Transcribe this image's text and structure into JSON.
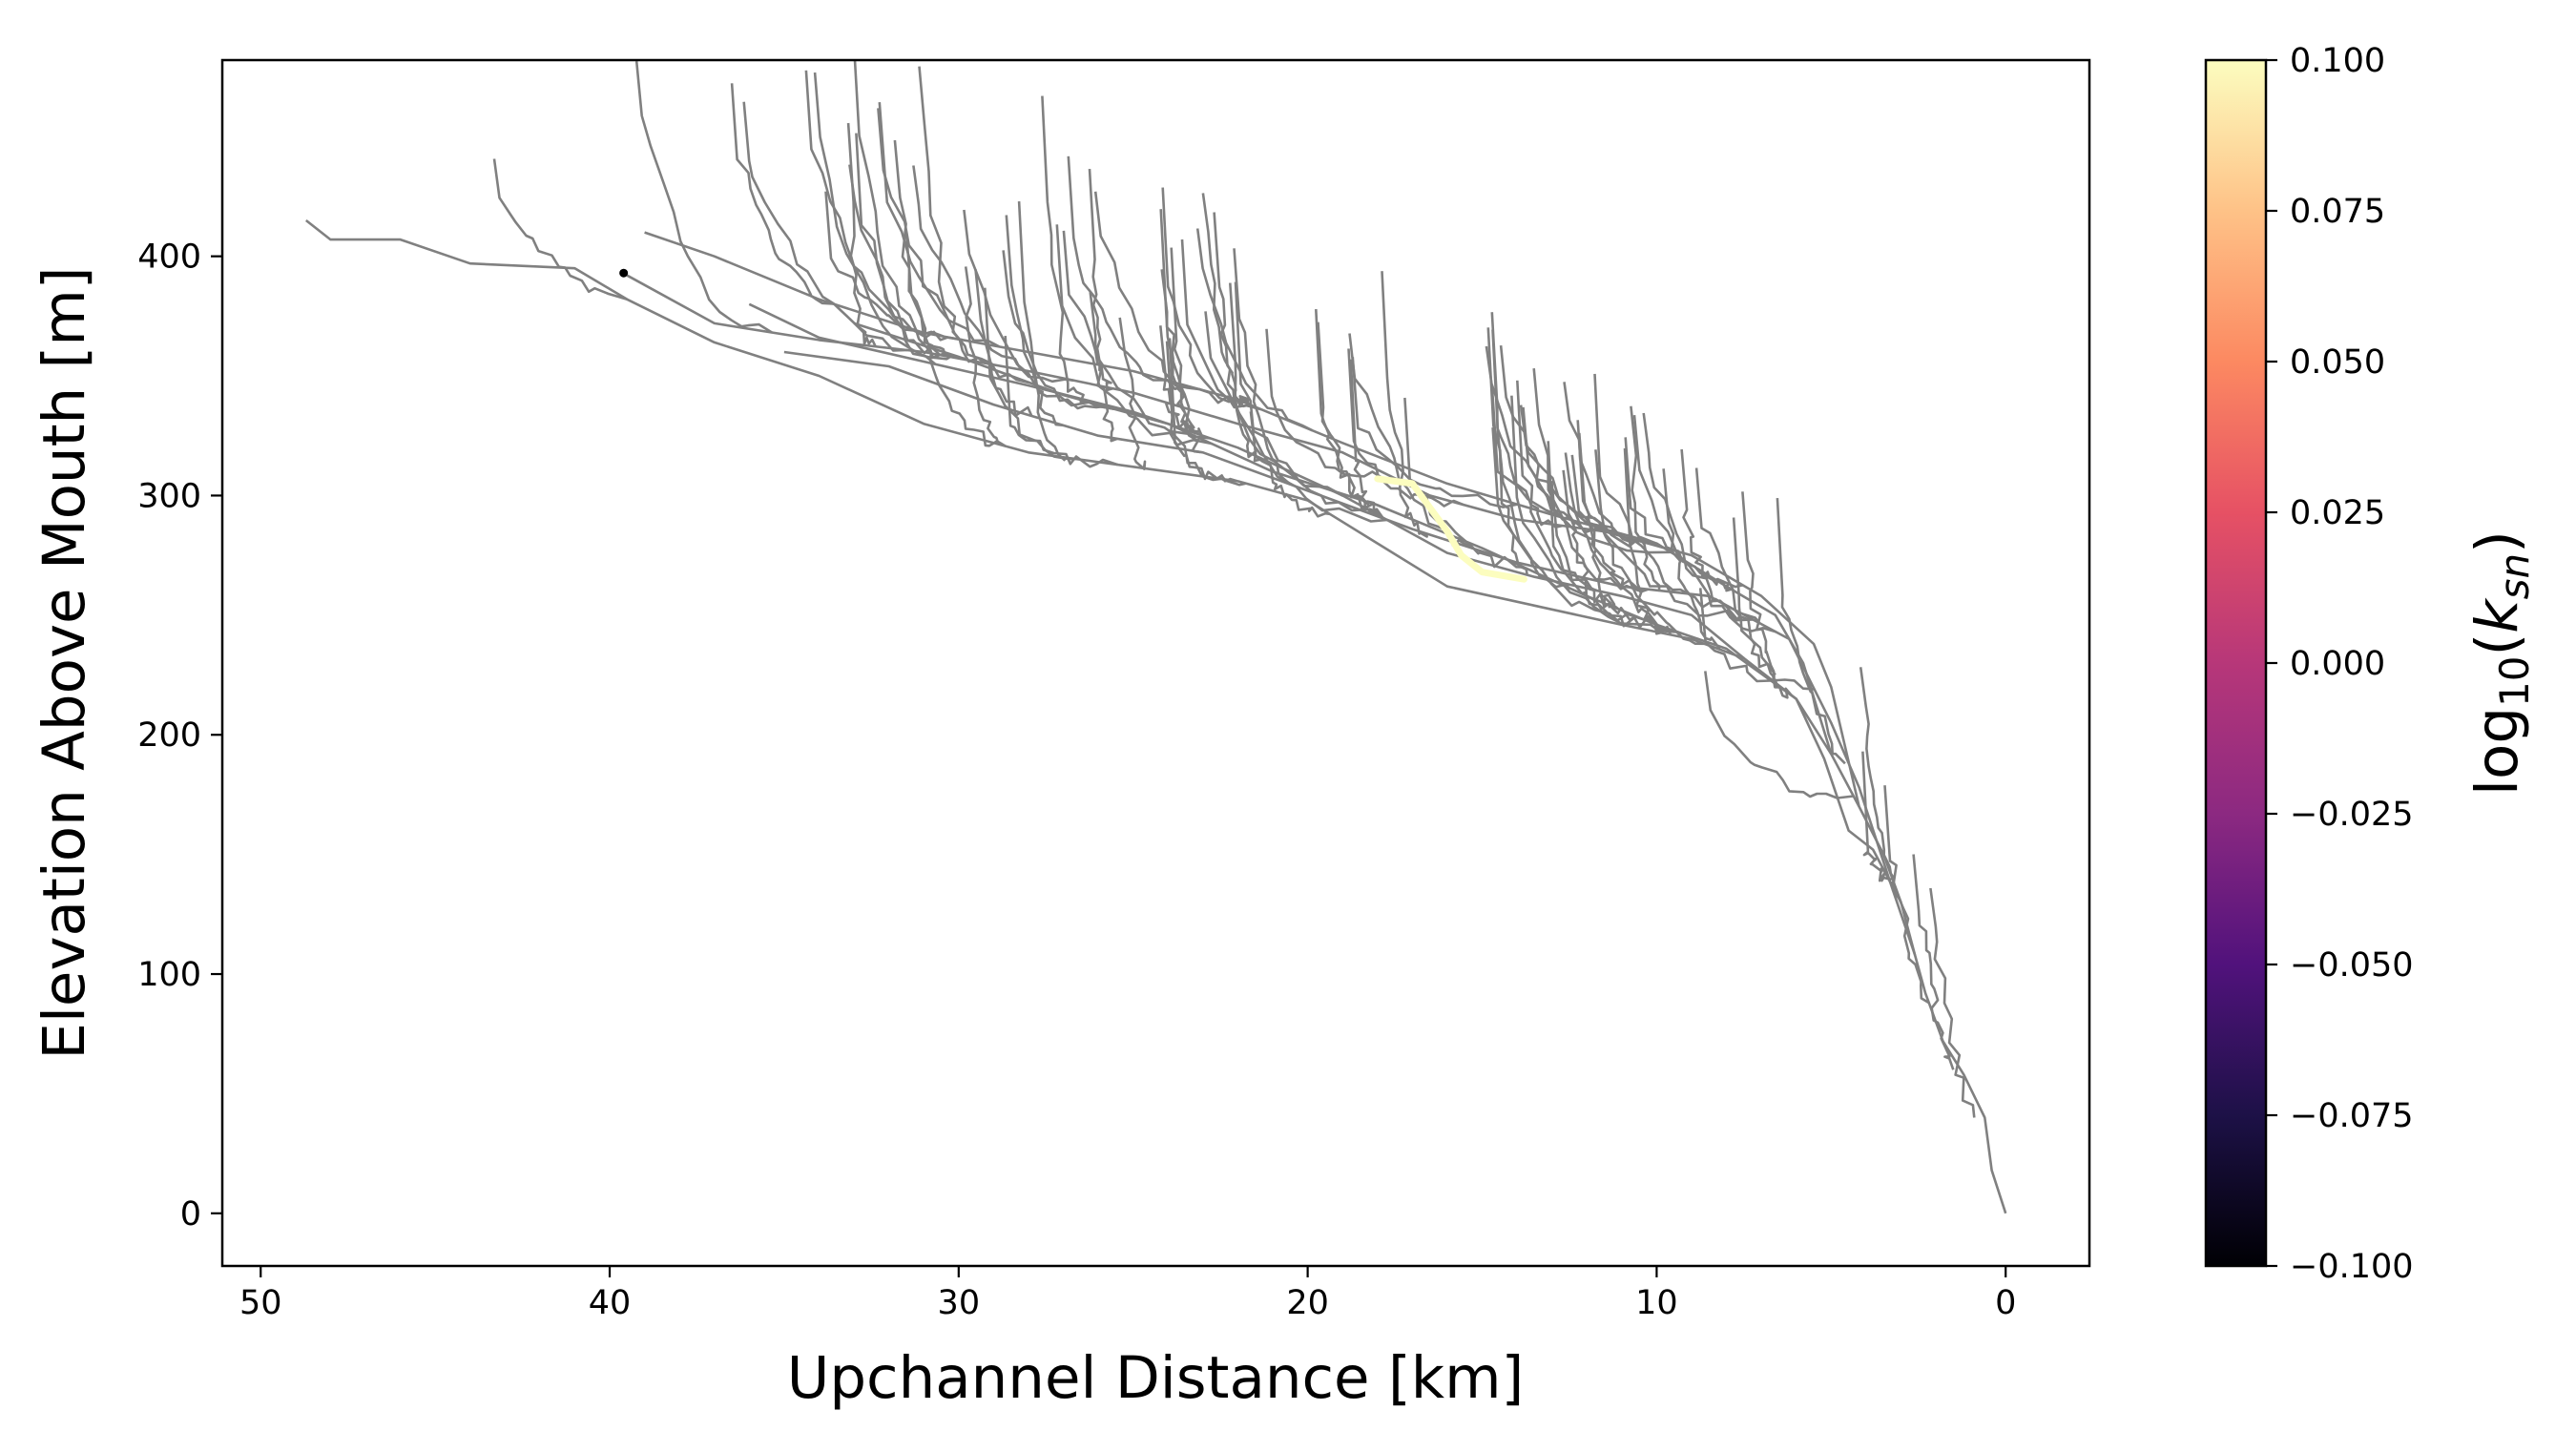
{
  "chart_data": {
    "type": "line",
    "xlabel": "Upchannel Distance [km]",
    "ylabel": "Elevation Above Mouth [m]",
    "x_axis_reversed": true,
    "xlim": [
      51.1,
      -2.4
    ],
    "ylim": [
      -22,
      482
    ],
    "x_ticks": [
      {
        "value": 50,
        "label": "50"
      },
      {
        "value": 40,
        "label": "40"
      },
      {
        "value": 30,
        "label": "30"
      },
      {
        "value": 20,
        "label": "20"
      },
      {
        "value": 10,
        "label": "10"
      },
      {
        "value": 0,
        "label": "0"
      }
    ],
    "y_ticks": [
      {
        "value": 0,
        "label": "0"
      },
      {
        "value": 100,
        "label": "100"
      },
      {
        "value": 200,
        "label": "200"
      },
      {
        "value": 300,
        "label": "300"
      },
      {
        "value": 400,
        "label": "400"
      }
    ],
    "grid": false,
    "line_color": "#808080",
    "trunk": [
      [
        0,
        0
      ],
      [
        0.4,
        18
      ],
      [
        0.6,
        40
      ],
      [
        1.2,
        58
      ],
      [
        1.8,
        72
      ],
      [
        2.3,
        92
      ],
      [
        2.6,
        108
      ],
      [
        3.0,
        130
      ],
      [
        3.5,
        150
      ],
      [
        4.2,
        170
      ],
      [
        5.0,
        192
      ],
      [
        6.0,
        215
      ],
      [
        7.5,
        232
      ],
      [
        9.0,
        240
      ],
      [
        11,
        246
      ],
      [
        13.5,
        254
      ],
      [
        16,
        262
      ],
      [
        18,
        280
      ],
      [
        20,
        298
      ],
      [
        22,
        306
      ],
      [
        25,
        312
      ],
      [
        28,
        318
      ],
      [
        31,
        330
      ],
      [
        34,
        350
      ],
      [
        37,
        364
      ],
      [
        39.5,
        382
      ],
      [
        41,
        395
      ],
      [
        44,
        397
      ],
      [
        46,
        407
      ],
      [
        48,
        407
      ],
      [
        48.7,
        415
      ]
    ],
    "main_branches": [
      [
        [
          4.2,
          170
        ],
        [
          5.0,
          220
        ],
        [
          5.5,
          238
        ],
        [
          7,
          258
        ],
        [
          9,
          275
        ],
        [
          11.5,
          285
        ],
        [
          14,
          290
        ],
        [
          16.5,
          300
        ],
        [
          19,
          318
        ],
        [
          22,
          330
        ],
        [
          25,
          343
        ],
        [
          28,
          352
        ],
        [
          31,
          360
        ],
        [
          34,
          365
        ],
        [
          37,
          372
        ],
        [
          39.5,
          392
        ]
      ],
      [
        [
          5.0,
          192
        ],
        [
          5.8,
          230
        ],
        [
          6.6,
          250
        ],
        [
          8,
          262
        ],
        [
          10,
          280
        ],
        [
          13,
          292
        ],
        [
          16,
          305
        ],
        [
          19,
          322
        ],
        [
          22,
          340
        ],
        [
          25,
          352
        ],
        [
          28,
          360
        ],
        [
          31,
          368
        ],
        [
          34,
          382
        ],
        [
          37,
          400
        ],
        [
          39,
          410
        ]
      ],
      [
        [
          2.6,
          108
        ],
        [
          3.3,
          138
        ],
        [
          4.2,
          178
        ],
        [
          5.0,
          205
        ],
        [
          6.2,
          240
        ],
        [
          8.5,
          258
        ],
        [
          11,
          262
        ],
        [
          14,
          272
        ],
        [
          17,
          286
        ],
        [
          20,
          302
        ],
        [
          23,
          318
        ],
        [
          26,
          325
        ],
        [
          29,
          338
        ],
        [
          32,
          354
        ],
        [
          35,
          360
        ]
      ],
      [
        [
          7.5,
          232
        ],
        [
          9,
          250
        ],
        [
          11,
          258
        ],
        [
          13.5,
          266
        ],
        [
          16,
          276
        ],
        [
          19,
          300
        ],
        [
          22,
          320
        ],
        [
          25,
          335
        ],
        [
          28,
          346
        ],
        [
          31,
          356
        ],
        [
          34,
          366
        ],
        [
          36,
          380
        ]
      ],
      [
        [
          3.0,
          130
        ],
        [
          3.8,
          152
        ],
        [
          4.5,
          160
        ],
        [
          5.2,
          190
        ],
        [
          6.0,
          215
        ],
        [
          8,
          236
        ],
        [
          10,
          246
        ],
        [
          12,
          258
        ],
        [
          15,
          278
        ],
        [
          18,
          296
        ],
        [
          21,
          310
        ],
        [
          24,
          330
        ],
        [
          27,
          342
        ],
        [
          30,
          358
        ],
        [
          33,
          372
        ]
      ]
    ],
    "colorbar": {
      "label": "log10(k_sn)",
      "label_base": "log",
      "label_sub": "10",
      "label_var": "k",
      "label_var_sub": "sn",
      "colormap": "magma",
      "range": [
        -0.1,
        0.1
      ],
      "ticks": [
        "0.100",
        "0.075",
        "0.050",
        "0.025",
        "0.000",
        "−0.025",
        "−0.050",
        "−0.075",
        "−0.100"
      ],
      "stops": [
        "#fcfdbf",
        "#fec287",
        "#fc8961",
        "#e65164",
        "#b73779",
        "#8c2981",
        "#51127c",
        "#1d1147",
        "#000004"
      ]
    },
    "highlight_segment": {
      "color": "#fcfdbf",
      "points": [
        [
          18.0,
          307
        ],
        [
          17.0,
          305
        ],
        [
          16.5,
          295
        ],
        [
          16.0,
          285
        ],
        [
          15.6,
          275
        ],
        [
          15.0,
          268
        ],
        [
          14.2,
          266
        ],
        [
          13.8,
          265
        ]
      ]
    },
    "marker_point": {
      "x": 39.6,
      "y": 393,
      "color": "#000000"
    }
  }
}
